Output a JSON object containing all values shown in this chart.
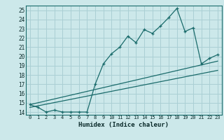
{
  "xlabel": "Humidex (Indice chaleur)",
  "ylabel": "",
  "bg_color": "#cce8ea",
  "grid_color": "#aacfd4",
  "line_color": "#1a6b6b",
  "xlim": [
    -0.5,
    23.5
  ],
  "ylim": [
    13.7,
    25.5
  ],
  "yticks": [
    14,
    15,
    16,
    17,
    18,
    19,
    20,
    21,
    22,
    23,
    24,
    25
  ],
  "xticks": [
    0,
    1,
    2,
    3,
    4,
    5,
    6,
    7,
    8,
    9,
    10,
    11,
    12,
    13,
    14,
    15,
    16,
    17,
    18,
    19,
    20,
    21,
    22,
    23
  ],
  "line1_x": [
    0,
    1,
    2,
    3,
    4,
    5,
    6,
    7,
    8,
    9,
    10,
    11,
    12,
    13,
    14,
    15,
    16,
    17,
    18,
    19,
    20,
    21,
    22,
    23
  ],
  "line1_y": [
    14.8,
    14.5,
    14.0,
    14.2,
    14.0,
    14.0,
    14.0,
    14.0,
    17.0,
    19.2,
    20.3,
    21.0,
    22.2,
    21.5,
    22.9,
    22.5,
    23.3,
    24.2,
    25.2,
    22.7,
    23.1,
    19.2,
    19.8,
    20.2
  ],
  "line2_x": [
    0,
    23
  ],
  "line2_y": [
    14.8,
    19.5
  ],
  "line3_x": [
    0,
    23
  ],
  "line3_y": [
    14.5,
    18.5
  ]
}
